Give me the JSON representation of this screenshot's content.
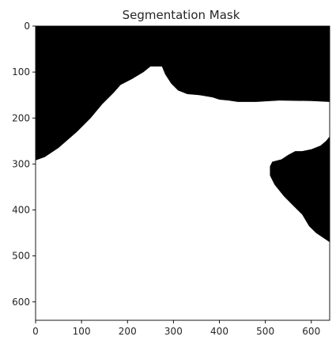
{
  "chart_data": {
    "type": "heatmap",
    "title": "Segmentation Mask",
    "xlabel": "",
    "ylabel": "",
    "xlim": [
      0,
      640
    ],
    "ylim": [
      640,
      0
    ],
    "grid": false,
    "colors": {
      "background_class": "#000000",
      "foreground_class": "#ffffff",
      "axes_frame": "#000000",
      "text": "#262626"
    },
    "x_ticks": [
      {
        "value": 0,
        "label": "0"
      },
      {
        "value": 100,
        "label": "100"
      },
      {
        "value": 200,
        "label": "200"
      },
      {
        "value": 300,
        "label": "300"
      },
      {
        "value": 400,
        "label": "400"
      },
      {
        "value": 500,
        "label": "500"
      },
      {
        "value": 600,
        "label": "600"
      }
    ],
    "y_ticks": [
      {
        "value": 0,
        "label": "0"
      },
      {
        "value": 100,
        "label": "100"
      },
      {
        "value": 200,
        "label": "200"
      },
      {
        "value": 300,
        "label": "300"
      },
      {
        "value": 400,
        "label": "400"
      },
      {
        "value": 500,
        "label": "500"
      },
      {
        "value": 600,
        "label": "600"
      }
    ],
    "regions": [
      {
        "class": "background",
        "color": "#000000",
        "boundary": [
          [
            0,
            0
          ],
          [
            640,
            0
          ],
          [
            640,
            165
          ],
          [
            600,
            163
          ],
          [
            530,
            162
          ],
          [
            480,
            165
          ],
          [
            440,
            165
          ],
          [
            420,
            162
          ],
          [
            400,
            160
          ],
          [
            385,
            155
          ],
          [
            355,
            150
          ],
          [
            330,
            148
          ],
          [
            310,
            140
          ],
          [
            295,
            125
          ],
          [
            282,
            105
          ],
          [
            275,
            88
          ],
          [
            250,
            88
          ],
          [
            235,
            100
          ],
          [
            210,
            115
          ],
          [
            185,
            128
          ],
          [
            170,
            145
          ],
          [
            145,
            170
          ],
          [
            120,
            200
          ],
          [
            90,
            230
          ],
          [
            50,
            265
          ],
          [
            20,
            285
          ],
          [
            0,
            292
          ]
        ]
      },
      {
        "class": "background",
        "color": "#000000",
        "boundary": [
          [
            640,
            240
          ],
          [
            632,
            250
          ],
          [
            620,
            260
          ],
          [
            600,
            268
          ],
          [
            580,
            272
          ],
          [
            565,
            272
          ],
          [
            550,
            280
          ],
          [
            535,
            290
          ],
          [
            515,
            295
          ],
          [
            510,
            305
          ],
          [
            510,
            325
          ],
          [
            520,
            345
          ],
          [
            540,
            370
          ],
          [
            560,
            390
          ],
          [
            580,
            410
          ],
          [
            595,
            435
          ],
          [
            610,
            450
          ],
          [
            625,
            460
          ],
          [
            640,
            470
          ]
        ]
      }
    ]
  }
}
